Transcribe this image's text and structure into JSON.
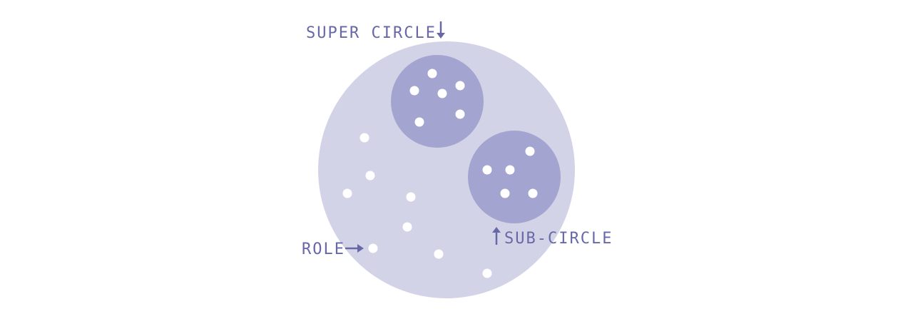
{
  "diagram": {
    "labels": {
      "super_circle": "SUPER CIRCLE",
      "sub_circle": "SUB-CIRCLE",
      "role": "ROLE"
    },
    "colors": {
      "background": "#ffffff",
      "super_circle_fill": "#d3d3e8",
      "sub_circle_fill": "#a4a4d0",
      "dot_fill": "#ffffff",
      "label_text": "#6868a8",
      "arrow": "#6868a8"
    }
  }
}
